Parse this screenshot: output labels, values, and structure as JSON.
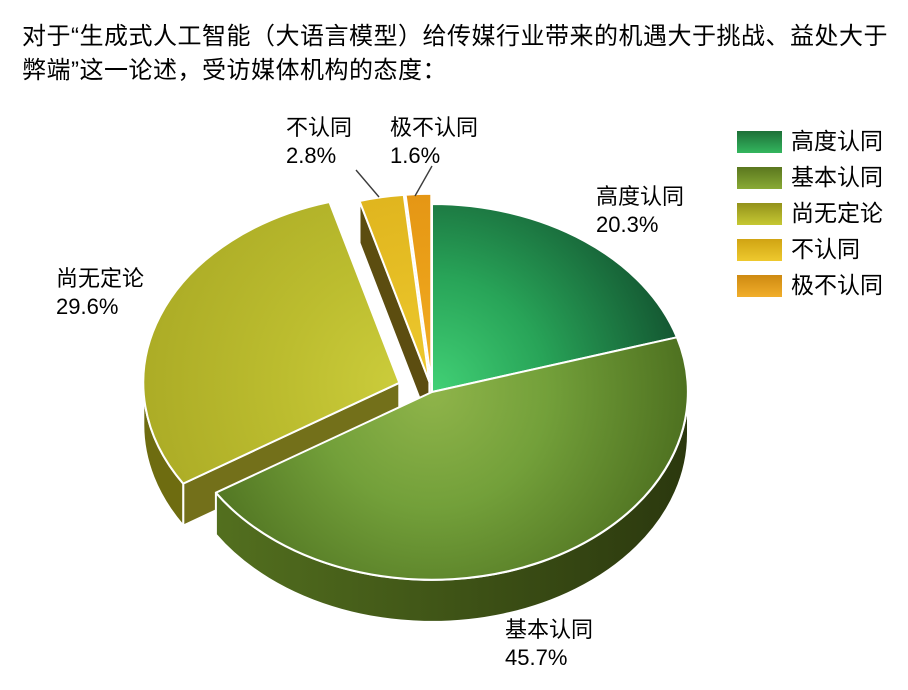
{
  "title": "对于“生成式人工智能（大语言模型）给传媒行业带来的机遇大于挑战、益处大于\n弊端”这一论述，受访媒体机构的态度：",
  "chart_data": {
    "type": "pie",
    "style": "3d-exploded",
    "title": "受访媒体机构对“生成式人工智能给传媒行业带来的机遇大于挑战、益处大于弊端”的态度",
    "unit": "%",
    "direction": "clockwise",
    "start_angle_deg": 0,
    "legend_position": "right",
    "categories": [
      "高度认同",
      "基本认同",
      "尚无定论",
      "不认同",
      "极不认同"
    ],
    "values": [
      20.3,
      45.7,
      29.6,
      2.8,
      1.6
    ],
    "slices": [
      {
        "id": "highly-agree",
        "label": "高度认同",
        "value": 20.3,
        "percent_label": "20.3%",
        "explode": 0,
        "top_stops": [
          "#42D176",
          "#28A458",
          "#135430"
        ],
        "rim_left": "#1B6B38",
        "rim_right": "#13502A",
        "cut": "#14532C",
        "legend_top": "#1D7038",
        "legend_bottom": "#33B65E"
      },
      {
        "id": "basic-agree",
        "label": "基本认同",
        "value": 45.7,
        "percent_label": "45.7%",
        "explode": 0,
        "top_stops": [
          "#8FB44A",
          "#73A03A",
          "#4E7120"
        ],
        "rim_left": "#567420",
        "rim_right": "#2B380E",
        "cut": "#3E5414",
        "legend_top": "#5A771E",
        "legend_bottom": "#89AA35"
      },
      {
        "id": "undecided",
        "label": "尚无定论",
        "value": 29.6,
        "percent_label": "29.6%",
        "explode": 35,
        "top_stops": [
          "#CBCC3B",
          "#BCBD2F",
          "#ACAC26"
        ],
        "rim_left": "#6E6C10",
        "rim_right": "#8D8B1E",
        "cut": "#73701A",
        "legend_top": "#93921B",
        "legend_bottom": "#C6C833"
      },
      {
        "id": "disagree",
        "label": "不认同",
        "value": 2.8,
        "percent_label": "2.8%",
        "explode": 14,
        "top_stops": [
          "#EDC92F",
          "#E5BD24",
          "#DCAF1A"
        ],
        "rim_left": "#9A820F",
        "rim_right": "#9A820F",
        "cut": "#5C4D10",
        "legend_top": "#D0A413",
        "legend_bottom": "#EEC92E"
      },
      {
        "id": "strongly-disagree",
        "label": "极不认同",
        "value": 1.6,
        "percent_label": "1.6%",
        "explode": 14,
        "top_stops": [
          "#F2AE26",
          "#EA9F18",
          "#E08E12"
        ],
        "rim_left": "#9A6E0C",
        "rim_right": "#9A6E0C",
        "cut": "#5C4A0E",
        "legend_top": "#CE8A11",
        "legend_bottom": "#F1AE2B"
      }
    ]
  }
}
